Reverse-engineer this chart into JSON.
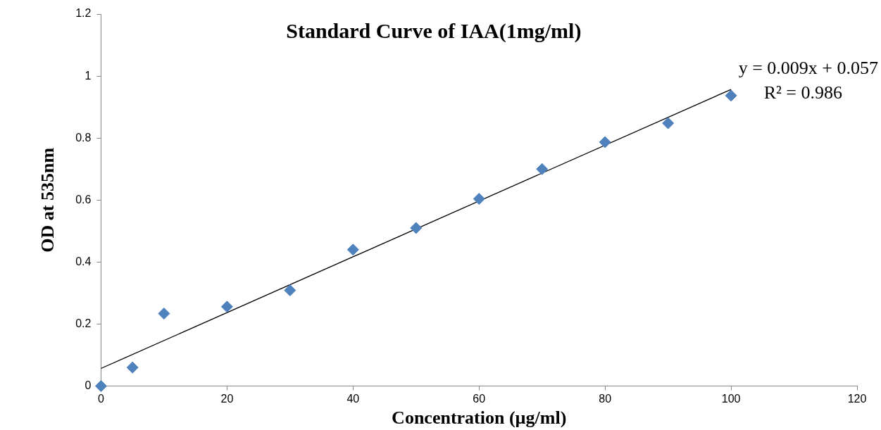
{
  "chart_data": {
    "type": "scatter",
    "title": "Standard Curve of IAA(1mg/ml)",
    "xlabel": "Concentration (µg/ml)",
    "ylabel": "OD at 535nm",
    "series": [
      {
        "color": "#4f81bd",
        "marker": "diamond",
        "x": [
          0,
          5,
          10,
          20,
          30,
          40,
          50,
          60,
          70,
          80,
          90,
          100
        ],
        "values": [
          0,
          0.06,
          0.234,
          0.256,
          0.309,
          0.44,
          0.51,
          0.604,
          0.7,
          0.787,
          0.848,
          0.937
        ]
      },
      {
        "type": "line",
        "color": "#000000",
        "marker": "none",
        "line_style": "solid",
        "x": [
          0,
          100
        ],
        "values": [
          0.057,
          0.957
        ]
      }
    ],
    "xlim": [
      0,
      120
    ],
    "xticks": [
      0,
      20,
      40,
      60,
      80,
      100,
      120
    ],
    "ylim": [
      0,
      1.2
    ],
    "yticks": [
      0,
      0.2,
      0.4,
      0.6,
      0.8,
      1,
      1.2
    ],
    "grid": false,
    "legend": false,
    "annotations": [
      "y = 0.009x + 0.057",
      "R² = 0.986"
    ]
  }
}
